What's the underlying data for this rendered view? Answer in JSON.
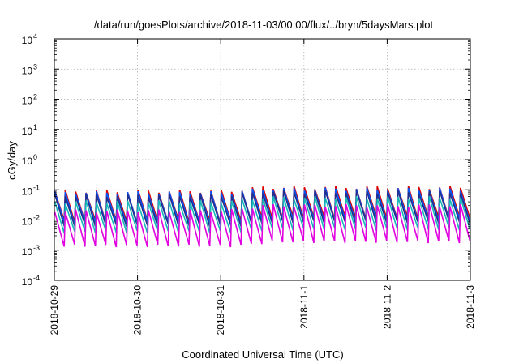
{
  "chart_data": {
    "type": "line",
    "title": "/data/run/goesPlots/archive/2018-11-03/00:00/flux/../bryn/5daysMars.plot",
    "xlabel": "Coordinated Universal Time (UTC)",
    "ylabel": "cGy/day",
    "x_range": [
      "2018-10-29",
      "2018-11-03"
    ],
    "x_ticks": [
      "2018-10-29",
      "2018-10-30",
      "2018-10-31",
      "2018-11-1",
      "2018-11-2",
      "2018-11-3"
    ],
    "y_scale": "log",
    "ylim": [
      0.0001,
      10000
    ],
    "y_ticks": [
      {
        "base": "10",
        "exp": "-4",
        "value": 0.0001
      },
      {
        "base": "10",
        "exp": "-3",
        "value": 0.001
      },
      {
        "base": "10",
        "exp": "-2",
        "value": 0.01
      },
      {
        "base": "10",
        "exp": "-1",
        "value": 0.1
      },
      {
        "base": "10",
        "exp": "0",
        "value": 1
      },
      {
        "base": "10",
        "exp": "1",
        "value": 10
      },
      {
        "base": "10",
        "exp": "2",
        "value": 100
      },
      {
        "base": "10",
        "exp": "3",
        "value": 1000
      },
      {
        "base": "10",
        "exp": "4",
        "value": 10000
      }
    ],
    "grid": true,
    "pattern": "sawtooth",
    "period_hours": 3,
    "series": [
      {
        "color": "#dd0000",
        "peak": 0.09,
        "trough": 0.009,
        "late_peak": 0.12,
        "late_trough": 0.012
      },
      {
        "color": "#0055ff",
        "peak": 0.08,
        "trough": 0.008,
        "late_peak": 0.105,
        "late_trough": 0.01
      },
      {
        "color": "#20308c",
        "peak": 0.065,
        "trough": 0.0065,
        "late_peak": 0.085,
        "late_trough": 0.0085
      },
      {
        "color": "#16b8b8",
        "peak": 0.04,
        "trough": 0.004,
        "late_peak": 0.055,
        "late_trough": 0.005
      },
      {
        "color": "#e000e0",
        "peak": 0.02,
        "trough": 0.0014,
        "late_peak": 0.03,
        "late_trough": 0.0019
      }
    ]
  }
}
